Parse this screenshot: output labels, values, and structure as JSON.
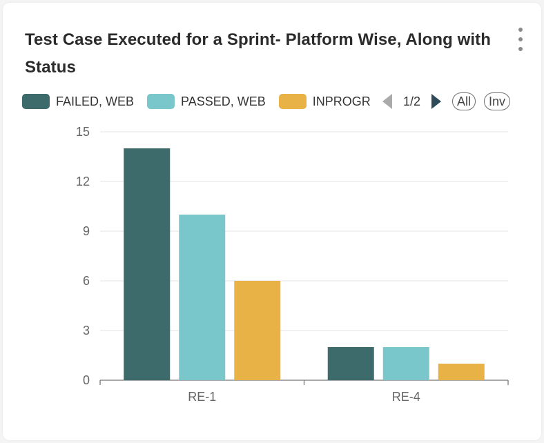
{
  "card": {
    "title": "Test Case Executed for a Sprint- Platform Wise, Along with Status"
  },
  "legend": {
    "items": [
      {
        "label": "FAILED, WEB",
        "color": "#3d6b6b"
      },
      {
        "label": "PASSED, WEB",
        "color": "#79c7cb"
      },
      {
        "label": "INPROGRESS, WEB",
        "color": "#e8b247"
      }
    ],
    "page": "1/2",
    "all_label": "All",
    "inv_label": "Inv"
  },
  "chart_data": {
    "type": "bar",
    "title": "Test Case Executed for a Sprint- Platform Wise, Along with Status",
    "categories": [
      "RE-1",
      "RE-4"
    ],
    "series": [
      {
        "name": "FAILED, WEB",
        "values": [
          14,
          2
        ],
        "color": "#3d6b6b"
      },
      {
        "name": "PASSED, WEB",
        "values": [
          10,
          2
        ],
        "color": "#79c7cb"
      },
      {
        "name": "INPROGRESS, WEB",
        "values": [
          6,
          1
        ],
        "color": "#e8b247"
      }
    ],
    "yticks": [
      "0",
      "3",
      "6",
      "9",
      "12",
      "15"
    ],
    "ylim": [
      0,
      15
    ],
    "xlabel": "",
    "ylabel": "",
    "grid": true
  }
}
